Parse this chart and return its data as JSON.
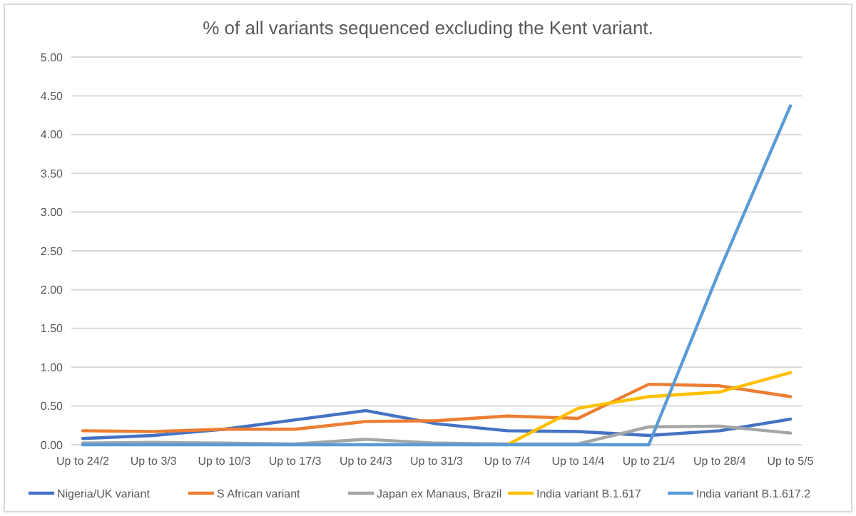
{
  "chart_data": {
    "type": "line",
    "title": "% of all variants sequenced excluding the Kent variant.",
    "categories": [
      "Up to 24/2",
      "Up to 3/3",
      "Up to 10/3",
      "Up to 17/3",
      "Up to 24/3",
      "Up to 31/3",
      "Up to 7/4",
      "Up to 14/4",
      "Up to 21/4",
      "Up to 28/4",
      "Up to 5/5"
    ],
    "series": [
      {
        "name": "Nigeria/UK variant",
        "color": "#4472c4",
        "values": [
          0.08,
          0.12,
          0.2,
          0.32,
          0.44,
          0.27,
          0.18,
          0.17,
          0.12,
          0.18,
          0.33
        ]
      },
      {
        "name": "S African variant",
        "color": "#ed7d31",
        "values": [
          0.18,
          0.17,
          0.2,
          0.2,
          0.3,
          0.31,
          0.37,
          0.34,
          0.78,
          0.76,
          0.62
        ]
      },
      {
        "name": "Japan ex Manaus, Brazil",
        "color": "#a5a5a5",
        "values": [
          0.02,
          0.03,
          0.02,
          0.01,
          0.07,
          0.02,
          0.01,
          0.01,
          0.23,
          0.24,
          0.15
        ]
      },
      {
        "name": "India variant B.1.617",
        "color": "#ffc000",
        "values": [
          null,
          null,
          null,
          null,
          null,
          null,
          0,
          0.47,
          0.62,
          0.68,
          0.93
        ]
      },
      {
        "name": "India variant B.1.617.2",
        "color": "#5b9bd5",
        "values": [
          0,
          0,
          0,
          0,
          0,
          0,
          0,
          0,
          0,
          2.25,
          4.37
        ]
      }
    ],
    "ylim": [
      0,
      5
    ],
    "yticks": [
      {
        "value": 0,
        "label": "0.00"
      },
      {
        "value": 0.5,
        "label": "0.50"
      },
      {
        "value": 1,
        "label": "1.00"
      },
      {
        "value": 1.5,
        "label": "1.50"
      },
      {
        "value": 2,
        "label": "2.00"
      },
      {
        "value": 2.5,
        "label": "2.50"
      },
      {
        "value": 3,
        "label": "3.00"
      },
      {
        "value": 3.5,
        "label": "3.50"
      },
      {
        "value": 4,
        "label": "4.00"
      },
      {
        "value": 4.5,
        "label": "4.50"
      },
      {
        "value": 5,
        "label": "5.00"
      }
    ],
    "grid": "y",
    "legend": "bottom",
    "line_style": "solid",
    "marker": "none"
  }
}
